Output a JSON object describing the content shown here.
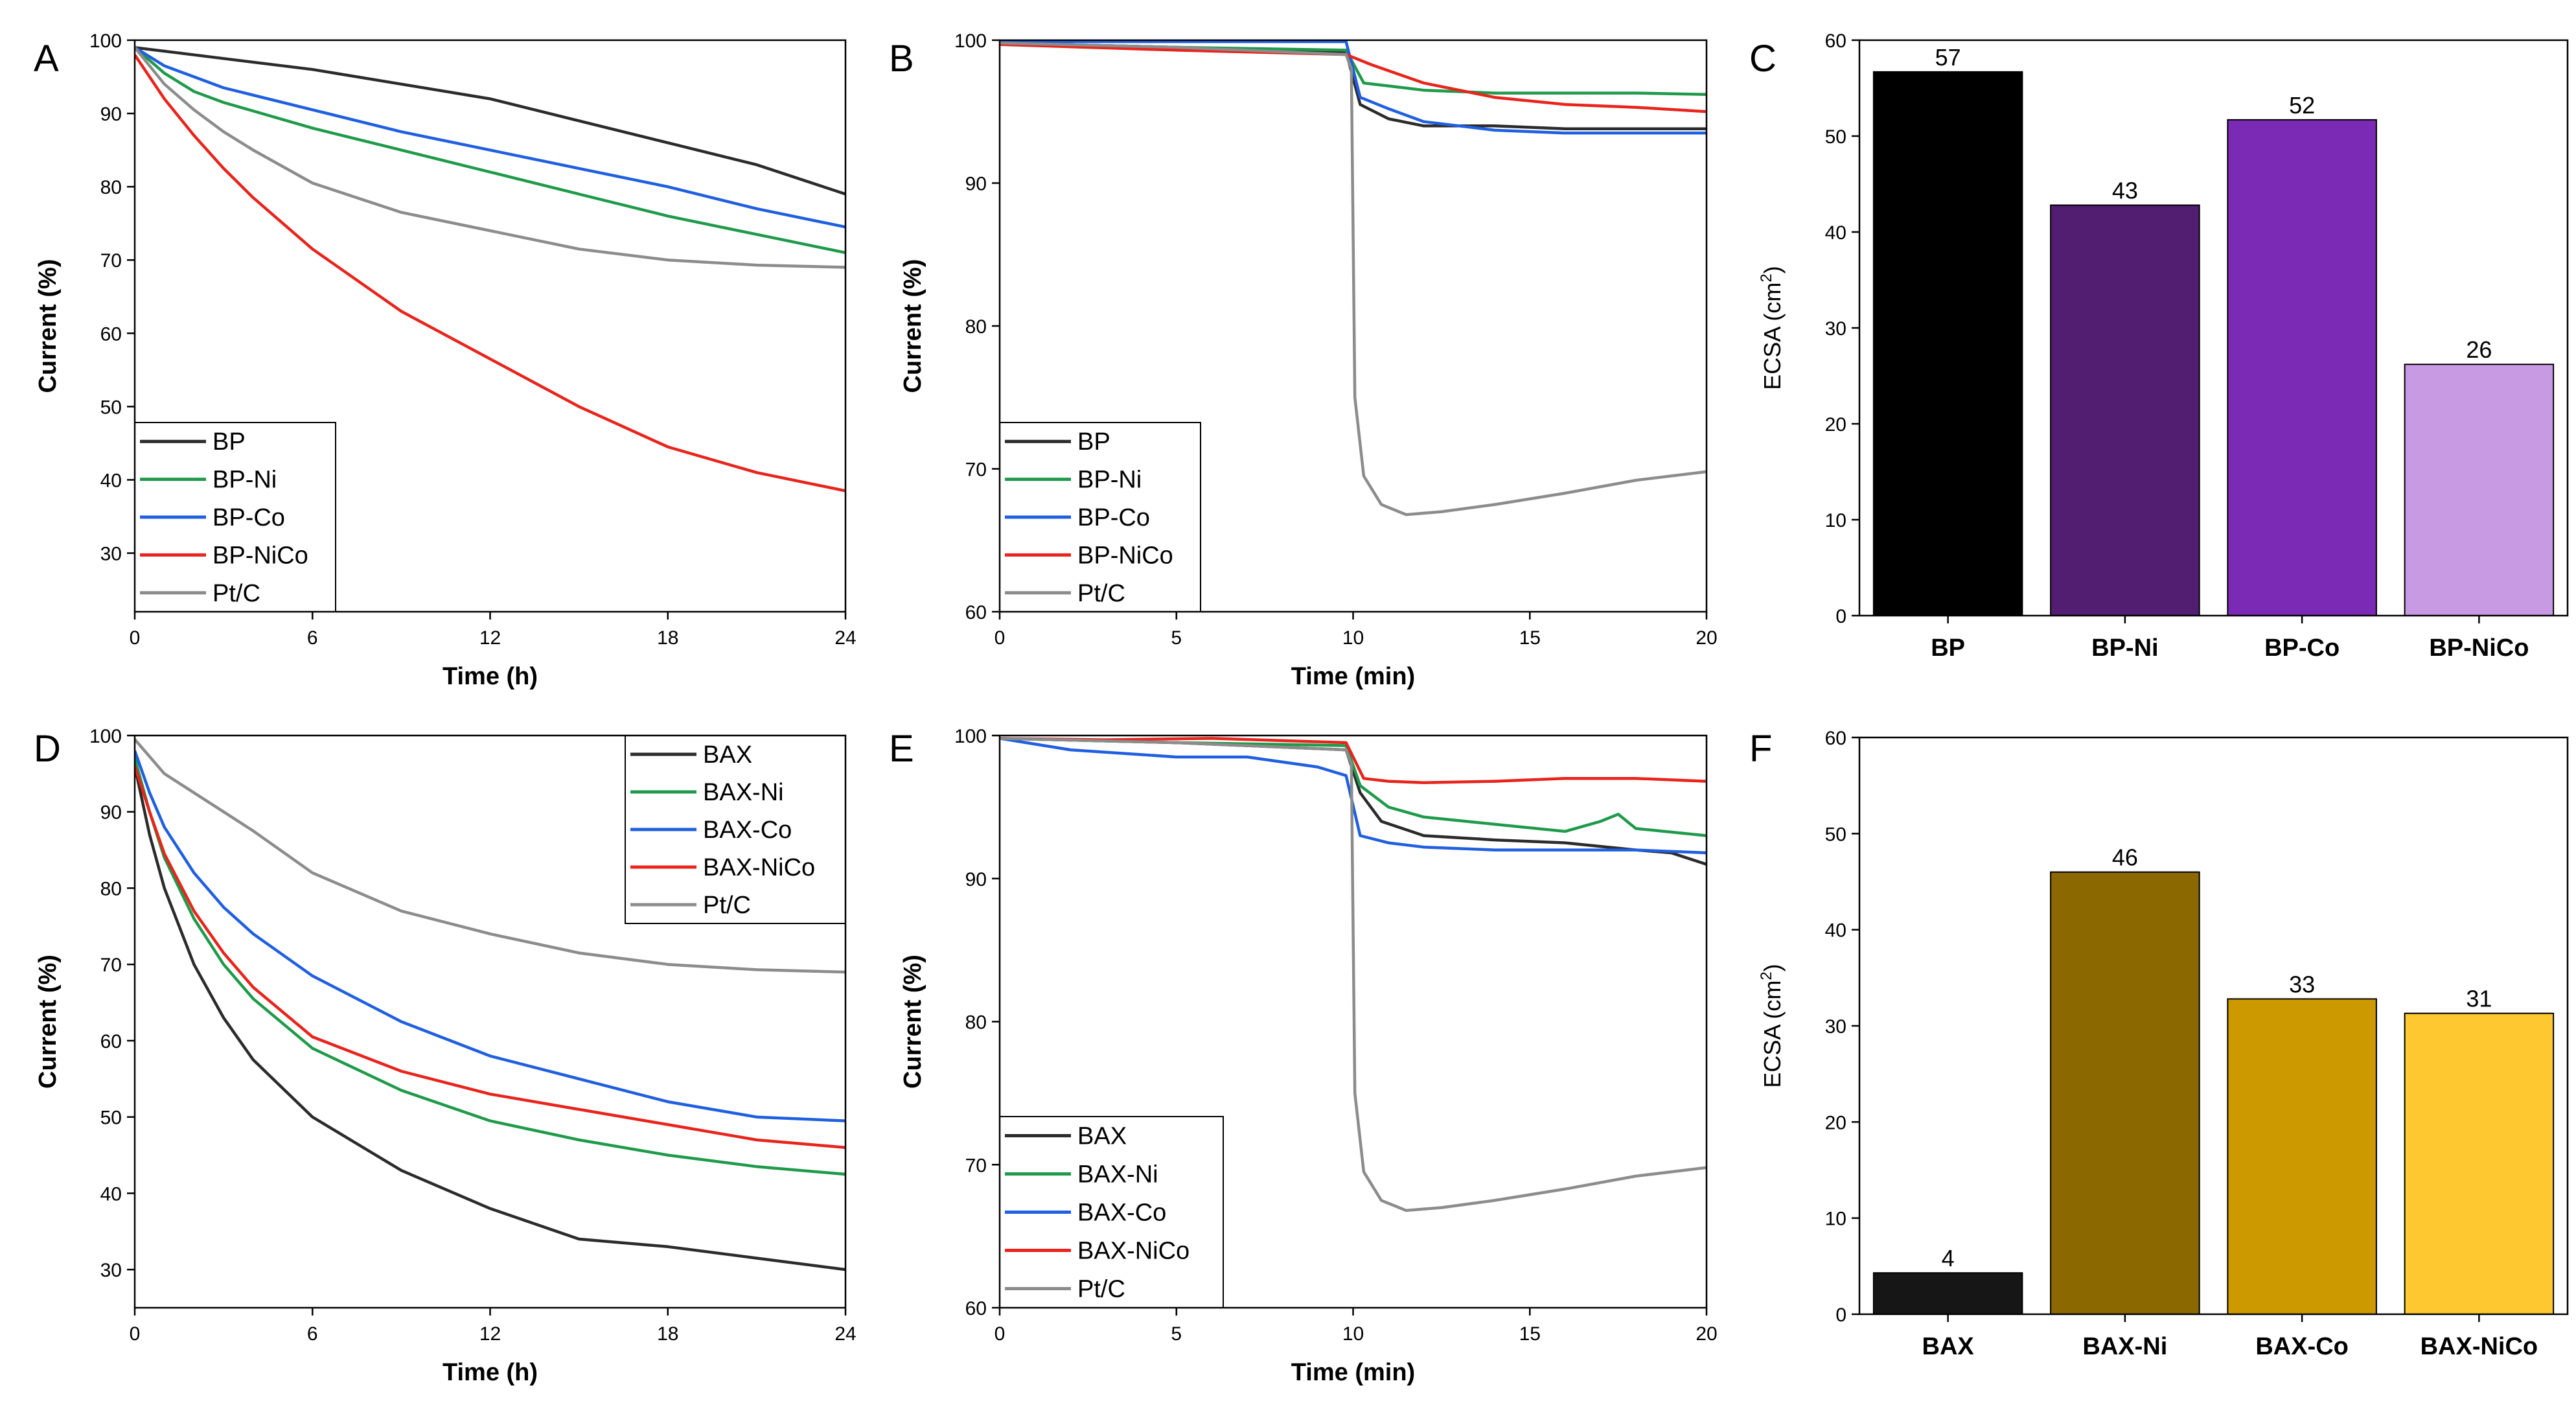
{
  "chart_data": [
    {
      "panel": "A",
      "type": "line",
      "xlabel": "Time (h)",
      "ylabel": "Current (%)",
      "xlim": [
        0,
        24
      ],
      "ylim": [
        22,
        100
      ],
      "xticks": [
        0,
        6,
        12,
        18,
        24
      ],
      "yticks": [
        30,
        40,
        50,
        60,
        70,
        80,
        90,
        100
      ],
      "legend_position": "bottom-left",
      "series": [
        {
          "name": "BP",
          "color": "#2b2b2b",
          "x": [
            0,
            1,
            3,
            6,
            9,
            12,
            15,
            18,
            21,
            24
          ],
          "y": [
            99,
            98.5,
            97.5,
            96,
            94,
            92,
            89,
            86,
            83,
            79
          ]
        },
        {
          "name": "BP-Ni",
          "color": "#1f9a4a",
          "x": [
            0,
            1,
            2,
            3,
            6,
            9,
            12,
            15,
            18,
            21,
            24
          ],
          "y": [
            99,
            95.5,
            93,
            91.5,
            88,
            85,
            82,
            79,
            76,
            73.5,
            71
          ]
        },
        {
          "name": "BP-Co",
          "color": "#1f5fe0",
          "x": [
            0,
            1,
            2,
            3,
            6,
            9,
            12,
            15,
            18,
            21,
            24
          ],
          "y": [
            99,
            96.5,
            95,
            93.5,
            90.5,
            87.5,
            85,
            82.5,
            80,
            77,
            74.5
          ]
        },
        {
          "name": "BP-NiCo",
          "color": "#e8241c",
          "x": [
            0,
            1,
            2,
            3,
            4,
            6,
            9,
            12,
            15,
            18,
            21,
            24
          ],
          "y": [
            98,
            92,
            87,
            82.5,
            78.5,
            71.5,
            63,
            56.5,
            50,
            44.5,
            41,
            38.5
          ]
        },
        {
          "name": "Pt/C",
          "color": "#8c8c8c",
          "x": [
            0,
            1,
            2,
            3,
            4,
            6,
            9,
            12,
            15,
            18,
            21,
            24
          ],
          "y": [
            99,
            94,
            90.5,
            87.5,
            85,
            80.5,
            76.5,
            74,
            71.5,
            70,
            69.3,
            69
          ]
        }
      ]
    },
    {
      "panel": "B",
      "type": "line",
      "xlabel": "Time (min)",
      "ylabel": "Current (%)",
      "xlim": [
        0,
        20
      ],
      "ylim": [
        60,
        100
      ],
      "xticks": [
        0,
        5,
        10,
        15,
        20
      ],
      "yticks": [
        60,
        70,
        80,
        90,
        100
      ],
      "legend_position": "bottom-left",
      "series": [
        {
          "name": "BP",
          "color": "#2b2b2b",
          "x": [
            0,
            5,
            9.8,
            10.2,
            11,
            12,
            14,
            16,
            18,
            20
          ],
          "y": [
            99.8,
            99.5,
            99.2,
            95.5,
            94.5,
            94,
            94,
            93.8,
            93.8,
            93.8
          ]
        },
        {
          "name": "BP-Ni",
          "color": "#1f9a4a",
          "x": [
            0,
            5,
            9.8,
            10.3,
            11,
            12,
            14,
            16,
            18,
            20
          ],
          "y": [
            99.8,
            99.5,
            99.3,
            97,
            96.8,
            96.5,
            96.3,
            96.3,
            96.3,
            96.2
          ]
        },
        {
          "name": "BP-Co",
          "color": "#1f5fe0",
          "x": [
            0,
            5,
            9.8,
            10.2,
            11,
            12,
            14,
            16,
            18,
            20
          ],
          "y": [
            99.9,
            99.9,
            99.9,
            96,
            95.2,
            94.3,
            93.7,
            93.5,
            93.5,
            93.5
          ]
        },
        {
          "name": "BP-NiCo",
          "color": "#e8241c",
          "x": [
            0,
            5,
            9.8,
            10.5,
            12,
            14,
            16,
            18,
            20
          ],
          "y": [
            99.7,
            99.3,
            99,
            98.3,
            97,
            96,
            95.5,
            95.3,
            95
          ]
        },
        {
          "name": "Pt/C",
          "color": "#8c8c8c",
          "x": [
            0,
            5,
            9.8,
            9.95,
            10.05,
            10.3,
            10.8,
            11.5,
            12.5,
            14,
            16,
            18,
            20
          ],
          "y": [
            99.8,
            99.5,
            99,
            98,
            75,
            69.5,
            67.5,
            66.8,
            67,
            67.5,
            68.3,
            69.2,
            69.8
          ]
        }
      ]
    },
    {
      "panel": "C",
      "type": "bar",
      "ylabel": "ECSA (cm²)",
      "ylim": [
        0,
        60
      ],
      "yticks": [
        0,
        10,
        20,
        30,
        40,
        50,
        60
      ],
      "categories": [
        "BP",
        "BP-Ni",
        "BP-Co",
        "BP-NiCo"
      ],
      "values": [
        57,
        43,
        52,
        26
      ],
      "plot_values": [
        56.7,
        42.8,
        51.7,
        26.2
      ],
      "colors": [
        "#000000",
        "#511e72",
        "#7b2ab5",
        "#c89ae3"
      ]
    },
    {
      "panel": "D",
      "type": "line",
      "xlabel": "Time (h)",
      "ylabel": "Current (%)",
      "xlim": [
        0,
        24
      ],
      "ylim": [
        25,
        100
      ],
      "xticks": [
        0,
        6,
        12,
        18,
        24
      ],
      "yticks": [
        30,
        40,
        50,
        60,
        70,
        80,
        90,
        100
      ],
      "legend_position": "top-right",
      "series": [
        {
          "name": "BAX",
          "color": "#2b2b2b",
          "x": [
            0,
            0.5,
            1,
            2,
            3,
            4,
            6,
            9,
            12,
            15,
            18,
            21,
            24
          ],
          "y": [
            96,
            87,
            80,
            70,
            63,
            57.5,
            50,
            43,
            38,
            34,
            33,
            31.5,
            30
          ]
        },
        {
          "name": "BAX-Ni",
          "color": "#1f9a4a",
          "x": [
            0,
            0.5,
            1,
            2,
            3,
            4,
            6,
            9,
            12,
            15,
            18,
            21,
            24
          ],
          "y": [
            97,
            90,
            84,
            76,
            70,
            65.5,
            59,
            53.5,
            49.5,
            47,
            45,
            43.5,
            42.5
          ]
        },
        {
          "name": "BAX-Co",
          "color": "#1f5fe0",
          "x": [
            0,
            0.5,
            1,
            2,
            3,
            4,
            6,
            9,
            12,
            15,
            18,
            21,
            24
          ],
          "y": [
            98,
            92.5,
            88,
            82,
            77.5,
            74,
            68.5,
            62.5,
            58,
            55,
            52,
            50,
            49.5
          ]
        },
        {
          "name": "BAX-NiCo",
          "color": "#e8241c",
          "x": [
            0,
            0.5,
            1,
            2,
            3,
            4,
            6,
            9,
            12,
            15,
            18,
            21,
            24
          ],
          "y": [
            96,
            90,
            84.5,
            77,
            71.5,
            67,
            60.5,
            56,
            53,
            51,
            49,
            47,
            46
          ]
        },
        {
          "name": "Pt/C",
          "color": "#8c8c8c",
          "x": [
            0,
            1,
            2,
            3,
            4,
            6,
            9,
            12,
            15,
            18,
            21,
            24
          ],
          "y": [
            99.5,
            95,
            92.5,
            90,
            87.5,
            82,
            77,
            74,
            71.5,
            70,
            69.3,
            69
          ]
        }
      ]
    },
    {
      "panel": "E",
      "type": "line",
      "xlabel": "Time (min)",
      "ylabel": "Current (%)",
      "xlim": [
        0,
        20
      ],
      "ylim": [
        60,
        100
      ],
      "xticks": [
        0,
        5,
        10,
        15,
        20
      ],
      "yticks": [
        60,
        70,
        80,
        90,
        100
      ],
      "legend_position": "bottom-left",
      "series": [
        {
          "name": "BAX",
          "color": "#2b2b2b",
          "x": [
            0,
            5,
            9.8,
            10.2,
            10.8,
            12,
            14,
            16,
            18,
            19,
            20
          ],
          "y": [
            99.8,
            99.5,
            99,
            96,
            94,
            93,
            92.7,
            92.5,
            92,
            91.8,
            91
          ]
        },
        {
          "name": "BAX-Ni",
          "color": "#1f9a4a",
          "x": [
            0,
            5,
            9.8,
            10.2,
            11,
            12,
            14,
            16,
            17,
            17.5,
            18,
            20
          ],
          "y": [
            99.8,
            99.5,
            99.3,
            96.5,
            95,
            94.3,
            93.8,
            93.3,
            94,
            94.5,
            93.5,
            93
          ]
        },
        {
          "name": "BAX-Co",
          "color": "#1f5fe0",
          "x": [
            0,
            2,
            5,
            7,
            9,
            9.8,
            10.2,
            11,
            12,
            14,
            16,
            18,
            20
          ],
          "y": [
            99.8,
            99,
            98.5,
            98.5,
            97.8,
            97.2,
            93,
            92.5,
            92.2,
            92,
            92,
            92,
            91.8
          ]
        },
        {
          "name": "BAX-NiCo",
          "color": "#e8241c",
          "x": [
            0,
            3,
            6,
            9.8,
            10.3,
            11,
            12,
            14,
            16,
            18,
            20
          ],
          "y": [
            99.8,
            99.7,
            99.8,
            99.5,
            97,
            96.8,
            96.7,
            96.8,
            97,
            97,
            96.8
          ]
        },
        {
          "name": "Pt/C",
          "color": "#8c8c8c",
          "x": [
            0,
            5,
            9.8,
            9.95,
            10.05,
            10.3,
            10.8,
            11.5,
            12.5,
            14,
            16,
            18,
            20
          ],
          "y": [
            99.8,
            99.5,
            99,
            98,
            75,
            69.5,
            67.5,
            66.8,
            67,
            67.5,
            68.3,
            69.2,
            69.8
          ]
        }
      ]
    },
    {
      "panel": "F",
      "type": "bar",
      "ylabel": "ECSA (cm²)",
      "ylim": [
        0,
        60
      ],
      "yticks": [
        0,
        10,
        20,
        30,
        40,
        50,
        60
      ],
      "categories": [
        "BAX",
        "BAX-Ni",
        "BAX-Co",
        "BAX-NiCo"
      ],
      "values": [
        4,
        46,
        33,
        31
      ],
      "plot_values": [
        4.3,
        46.0,
        32.8,
        31.3
      ],
      "colors": [
        "#161616",
        "#8b6800",
        "#cc9a00",
        "#fec831"
      ]
    }
  ]
}
